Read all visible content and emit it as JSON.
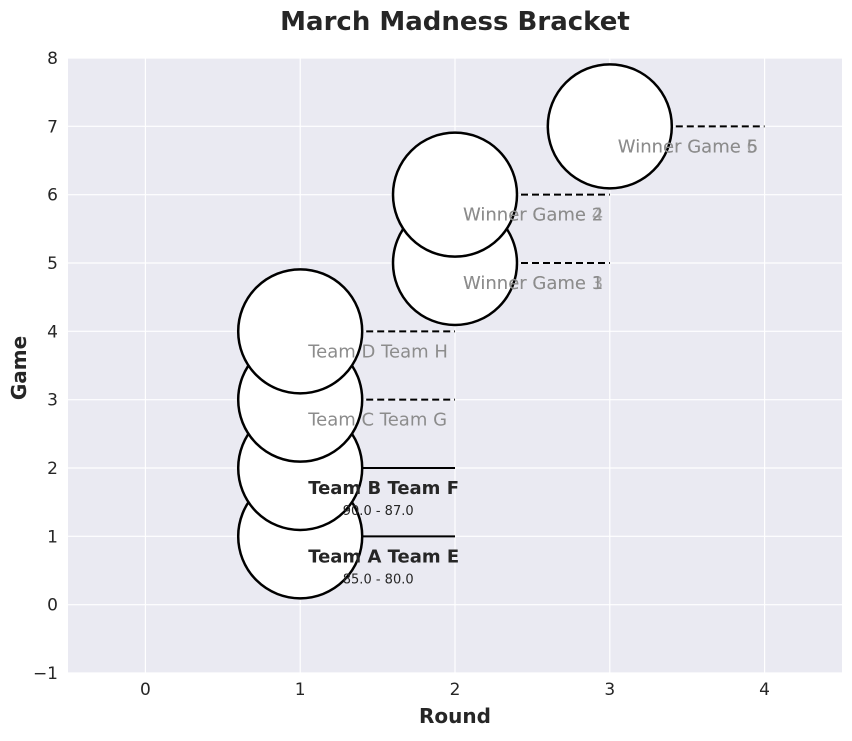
{
  "chart_data": {
    "type": "scatter",
    "title": "March Madness Bracket",
    "xlabel": "Round",
    "ylabel": "Game",
    "xlim": [
      -0.5,
      4.5
    ],
    "ylim": [
      -1,
      8
    ],
    "xticks": [
      "0",
      "1",
      "2",
      "3",
      "4"
    ],
    "yticks": [
      "−1",
      "0",
      "1",
      "2",
      "3",
      "4",
      "5",
      "6",
      "7",
      "8"
    ],
    "grid": true,
    "games": [
      {
        "round": 1,
        "game": 1,
        "label": "Team A Team E",
        "score": "85.0 - 80.0",
        "played": true,
        "connector_to_round": 2,
        "connector_style": "solid"
      },
      {
        "round": 1,
        "game": 2,
        "label": "Team B Team F",
        "score": "90.0 - 87.0",
        "played": true,
        "connector_to_round": 2,
        "connector_style": "solid"
      },
      {
        "round": 1,
        "game": 3,
        "label": "Team C Team G",
        "score": "",
        "played": false,
        "connector_to_round": 2,
        "connector_style": "dashed"
      },
      {
        "round": 1,
        "game": 4,
        "label": "Team D Team H",
        "score": "",
        "played": false,
        "connector_to_round": 2,
        "connector_style": "dashed"
      },
      {
        "round": 2,
        "game": 5,
        "label": "Winner Game 1",
        "score": "",
        "played": false,
        "connector_to_round": 3,
        "connector_style": "dashed"
      },
      {
        "round": 2,
        "game": 6,
        "label": "Winner Game 2",
        "score": "",
        "played": false,
        "connector_to_round": 3,
        "connector_style": "dashed"
      },
      {
        "round": 3,
        "game": 7,
        "label": "Winner Game 5",
        "score": "",
        "played": false,
        "connector_to_round": 4,
        "connector_style": "dashed"
      }
    ],
    "ghost_labels": [
      {
        "round": 2,
        "game": 5,
        "label": "Winner Game 3"
      },
      {
        "round": 2,
        "game": 6,
        "label": "Winner Game 4"
      },
      {
        "round": 3,
        "game": 7,
        "label": "Winner Game 6"
      }
    ],
    "colors": {
      "background": "#eaeaf2",
      "grid": "#ffffff",
      "circle_fill": "#ffffff",
      "circle_stroke": "#000000",
      "played_text": "#262626",
      "pending_text": "#8c8c8c",
      "axis_text": "#262626"
    }
  }
}
